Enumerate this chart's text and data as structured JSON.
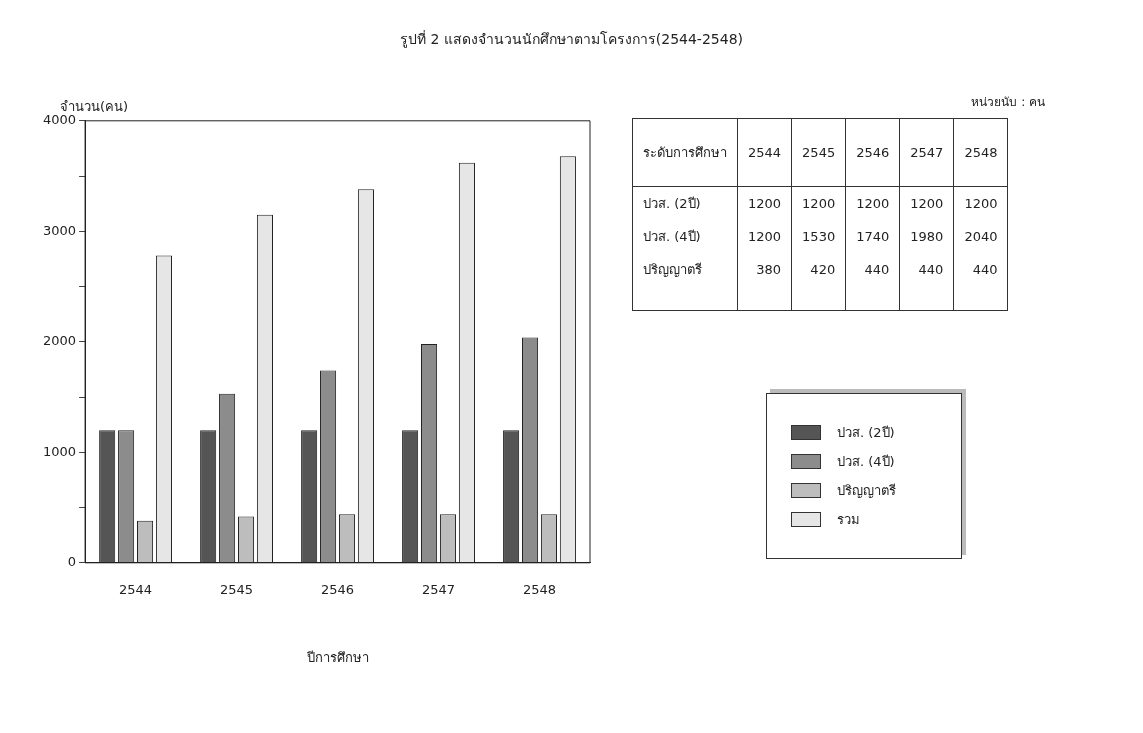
{
  "chart_data": {
    "type": "bar",
    "title": "รูปที่ 2 แสดงจำนวนนักศึกษาตามโครงการ(2544-2548)",
    "xlabel": "ปีการศึกษา",
    "ylabel": "จำนวน(คน)",
    "categories": [
      "2544",
      "2545",
      "2546",
      "2547",
      "2548"
    ],
    "series": [
      {
        "name": "ปวส. (2ปี)",
        "color": "#555555",
        "values": [
          1200,
          1200,
          1200,
          1200,
          1200
        ],
        "value_labels": [
          "1200",
          "1200",
          "1200",
          "1200",
          "1200"
        ]
      },
      {
        "name": "ปวส. (4ปี)",
        "color": "#8c8c8c",
        "values": [
          1200,
          1530,
          1740,
          1980,
          2040
        ],
        "value_labels": [
          "1200",
          "1530",
          "1740",
          "1980",
          "2040"
        ]
      },
      {
        "name": "ปริญญาตรี",
        "color": "#bdbdbd",
        "values": [
          380,
          420,
          440,
          440,
          440
        ],
        "value_labels": [
          "380",
          "420",
          "440",
          "440",
          "440"
        ]
      },
      {
        "name": "รวม",
        "color": "#e6e6e6",
        "values": [
          2780,
          3150,
          3380,
          3620,
          3680
        ]
      }
    ],
    "ylim": [
      0,
      4000
    ],
    "yticks": [
      0,
      {
        "value": 500,
        "label": null
      },
      1000,
      {
        "value": 1500,
        "label": null
      },
      2000,
      {
        "value": 2500,
        "label": null
      },
      3000,
      {
        "value": 3500,
        "label": null
      },
      4000
    ],
    "grid": false,
    "legend": "right",
    "annotations": [
      "หน่วยนับ : คน",
      "ระดับการศึกษา"
    ]
  }
}
